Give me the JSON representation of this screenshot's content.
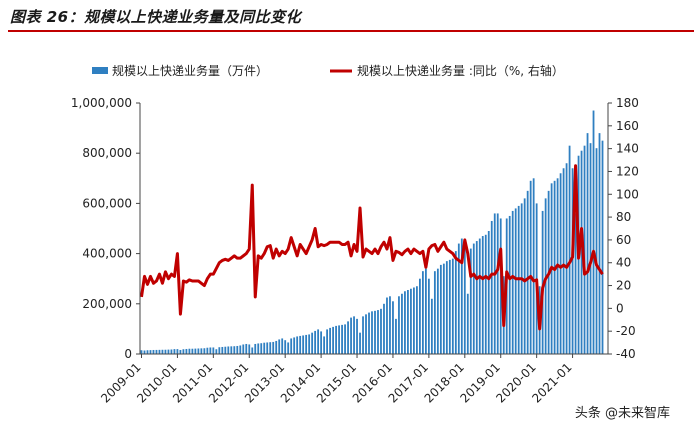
{
  "title": "图表 26：规模以上快递业务量及同比变化",
  "watermark": "头条 @未来智库",
  "colors": {
    "bar": "#2f7fc1",
    "line": "#c00000",
    "title_rule": "#c00000"
  },
  "chart_data": {
    "type": "bar+line",
    "legend": [
      {
        "name": "规模以上快递业务量（万件）",
        "type": "bar"
      },
      {
        "name": "规模以上快递业务量 :同比（%, 右轴）",
        "type": "line"
      }
    ],
    "legend_position": "top",
    "x_tick_labels": [
      "2009-01",
      "2010-01",
      "2011-01",
      "2012-01",
      "2013-01",
      "2014-01",
      "2015-01",
      "2016-01",
      "2017-01",
      "2018-01",
      "2019-01",
      "2020-01",
      "2021-01"
    ],
    "y_left": {
      "min": 0,
      "max": 1000000,
      "ticks": [
        "0",
        "200,000",
        "400,000",
        "600,000",
        "800,000",
        "1,000,000"
      ]
    },
    "y_right": {
      "min": -40,
      "max": 180,
      "ticks": [
        "-40",
        "-20",
        "0",
        "20",
        "40",
        "60",
        "80",
        "100",
        "120",
        "140",
        "160",
        "180"
      ]
    },
    "grid": false,
    "series": [
      {
        "name": "规模以上快递业务量（万件）",
        "start": "2009-01",
        "values": [
          15000,
          14000,
          15000,
          15500,
          16000,
          16200,
          16500,
          16800,
          17000,
          17500,
          18000,
          19500,
          19500,
          16000,
          19000,
          20000,
          21000,
          21000,
          21500,
          22000,
          22500,
          23000,
          25000,
          26000,
          26000,
          19000,
          27000,
          28000,
          29000,
          30000,
          30500,
          31000,
          32000,
          34000,
          38000,
          40000,
          38000,
          26000,
          40000,
          42000,
          43000,
          45000,
          46000,
          47000,
          48000,
          52000,
          58000,
          62000,
          55000,
          46000,
          62000,
          66000,
          70000,
          72000,
          74000,
          76000,
          78000,
          85000,
          92000,
          98000,
          90000,
          70000,
          98000,
          104000,
          108000,
          112000,
          114000,
          116000,
          118000,
          130000,
          145000,
          150000,
          140000,
          85000,
          150000,
          158000,
          165000,
          170000,
          172000,
          175000,
          180000,
          200000,
          225000,
          230000,
          210000,
          140000,
          230000,
          240000,
          250000,
          255000,
          260000,
          265000,
          270000,
          300000,
          330000,
          340000,
          300000,
          220000,
          330000,
          340000,
          355000,
          360000,
          370000,
          375000,
          380000,
          410000,
          440000,
          460000,
          430000,
          240000,
          420000,
          440000,
          450000,
          460000,
          470000,
          475000,
          490000,
          530000,
          560000,
          560000,
          540000,
          310000,
          540000,
          550000,
          570000,
          580000,
          590000,
          600000,
          620000,
          650000,
          690000,
          700000,
          600000,
          270000,
          570000,
          620000,
          650000,
          680000,
          690000,
          700000,
          720000,
          740000,
          760000,
          830000,
          740000,
          560000,
          790000,
          810000,
          830000,
          880000,
          840000,
          970000,
          820000,
          880000,
          850000
        ]
      },
      {
        "name": "规模以上快递业务量 :同比（%, 右轴）",
        "start": "2009-01",
        "values": [
          10,
          28,
          21,
          28,
          22,
          24,
          30,
          22,
          32,
          26,
          30,
          28,
          48,
          -5,
          24,
          23,
          25,
          24,
          24,
          24,
          22,
          20,
          26,
          30,
          30,
          35,
          40,
          42,
          43,
          42,
          44,
          46,
          44,
          44,
          46,
          48,
          52,
          108,
          10,
          46,
          44,
          48,
          54,
          55,
          44,
          52,
          46,
          50,
          48,
          52,
          62,
          54,
          46,
          56,
          52,
          48,
          54,
          60,
          70,
          54,
          56,
          55,
          56,
          58,
          58,
          58,
          58,
          56,
          56,
          58,
          46,
          56,
          50,
          88,
          45,
          52,
          50,
          48,
          52,
          48,
          54,
          58,
          52,
          62,
          42,
          50,
          49,
          47,
          50,
          52,
          48,
          52,
          50,
          48,
          50,
          36,
          52,
          55,
          56,
          50,
          54,
          58,
          52,
          50,
          48,
          44,
          42,
          40,
          60,
          48,
          28,
          30,
          26,
          28,
          26,
          28,
          26,
          30,
          30,
          34,
          52,
          -15,
          32,
          26,
          28,
          26,
          26,
          26,
          24,
          26,
          28,
          24,
          25,
          -18,
          18,
          26,
          30,
          36,
          34,
          38,
          36,
          38,
          36,
          40,
          45,
          125,
          44,
          70,
          30,
          32,
          40,
          50,
          38,
          34,
          30
        ]
      }
    ]
  }
}
